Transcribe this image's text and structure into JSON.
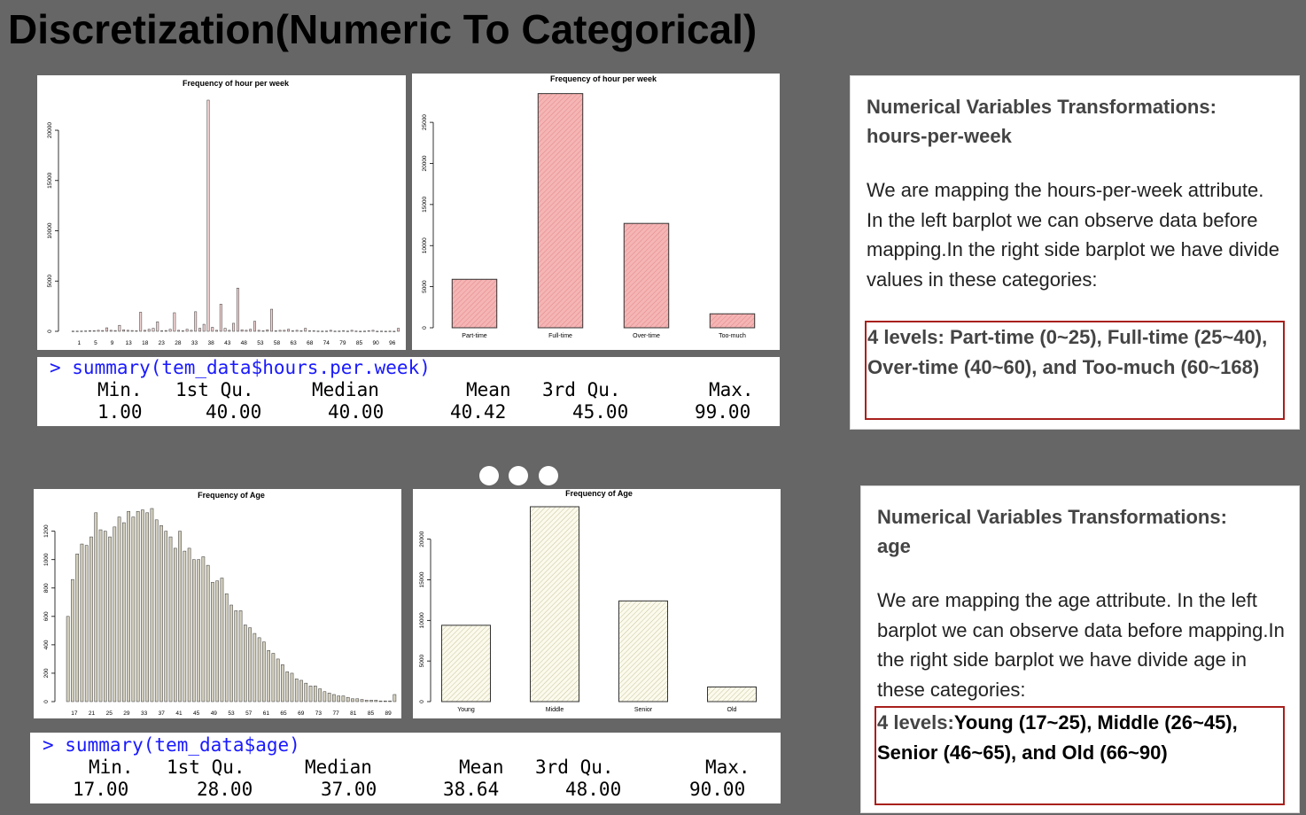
{
  "title": "Discretization(Numeric To Categorical)",
  "hours_section": {
    "summary": {
      "command": "> summary(tem_data$hours.per.week)",
      "headers": [
        "Min.",
        "1st Qu.",
        "Median",
        "Mean",
        "3rd Qu.",
        "Max."
      ],
      "values": [
        "1.00",
        "40.00",
        "40.00",
        "40.42",
        "45.00",
        "99.00"
      ]
    },
    "info": {
      "heading_line1": "Numerical Variables Transformations:",
      "heading_line2": "hours-per-week",
      "body": "We are mapping the hours-per-week attribute. In the left barplot we can observe data before mapping.In the right side barplot we have divide values in these categories:",
      "levels": "4 levels: Part-time (0~25), Full-time (25~40), Over-time (40~60), and Too-much (60~168)"
    }
  },
  "age_section": {
    "summary": {
      "command": "> summary(tem_data$age)",
      "headers": [
        "Min.",
        "1st Qu.",
        "Median",
        "Mean",
        "3rd Qu.",
        "Max."
      ],
      "values": [
        "17.00",
        "28.00",
        "37.00",
        "38.64",
        "48.00",
        "90.00"
      ]
    },
    "info": {
      "heading_line1": "Numerical Variables Transformations:",
      "heading_line2": "age",
      "body": "We are mapping the age attribute. In the left barplot we can observe data before mapping.In the right side barplot we have divide age in these categories:",
      "levels_prefix": "4 levels:",
      "levels_rest": "Young (17~25), Middle (26~45), Senior (46~65), and Old (66~90)"
    }
  },
  "chart_data": [
    {
      "id": "hours-raw",
      "type": "bar",
      "title": "Frequency of hour per week",
      "ylim": [
        0,
        23000
      ],
      "yticks": [
        0,
        5000,
        10000,
        15000,
        20000
      ],
      "x_tick_labels": [
        "1",
        "5",
        "9",
        "13",
        "18",
        "23",
        "28",
        "33",
        "38",
        "43",
        "48",
        "53",
        "58",
        "63",
        "68",
        "74",
        "79",
        "85",
        "90",
        "96"
      ],
      "values": [
        20,
        20,
        30,
        40,
        60,
        60,
        100,
        80,
        350,
        100,
        80,
        600,
        150,
        100,
        80,
        50,
        1900,
        100,
        200,
        300,
        950,
        50,
        80,
        200,
        1850,
        100,
        50,
        200,
        100,
        1950,
        300,
        700,
        23000,
        400,
        100,
        2700,
        300,
        100,
        800,
        4300,
        150,
        100,
        200,
        1000,
        100,
        50,
        150,
        2200,
        50,
        100,
        100,
        200,
        50,
        100,
        50,
        300,
        50,
        50,
        30,
        20,
        30,
        100,
        20,
        30,
        50,
        20,
        100,
        30,
        10,
        20,
        50,
        100,
        10,
        20,
        10,
        20,
        10,
        300
      ]
    },
    {
      "id": "hours-categories",
      "type": "bar",
      "title": "Frequency of hour per week",
      "categories": [
        "Part-time",
        "Full-time",
        "Over-time",
        "Too-much"
      ],
      "values": [
        5900,
        28500,
        12700,
        1700
      ],
      "ylim": [
        0,
        29000
      ],
      "yticks": [
        0,
        5000,
        10000,
        15000,
        20000,
        25000
      ],
      "color": "#f5b5b5"
    },
    {
      "id": "age-raw",
      "type": "bar",
      "title": "Frequency of Age",
      "ylim": [
        0,
        1360
      ],
      "yticks": [
        0,
        200,
        400,
        600,
        800,
        1000,
        1200
      ],
      "x_tick_labels": [
        "17",
        "21",
        "25",
        "29",
        "33",
        "37",
        "41",
        "45",
        "49",
        "53",
        "57",
        "61",
        "65",
        "69",
        "73",
        "77",
        "81",
        "85",
        "89"
      ],
      "values": [
        600,
        860,
        1040,
        1110,
        1100,
        1160,
        1330,
        1210,
        1200,
        1160,
        1230,
        1300,
        1260,
        1340,
        1300,
        1340,
        1350,
        1330,
        1360,
        1280,
        1240,
        1200,
        1160,
        1080,
        1200,
        1060,
        1080,
        1000,
        1000,
        1020,
        960,
        840,
        850,
        870,
        760,
        680,
        640,
        640,
        540,
        520,
        480,
        450,
        420,
        360,
        340,
        300,
        260,
        210,
        200,
        160,
        150,
        130,
        110,
        110,
        90,
        70,
        60,
        50,
        40,
        40,
        30,
        20,
        20,
        15,
        10,
        10,
        10,
        5,
        5,
        5,
        50
      ],
      "color": "#d4d0be"
    },
    {
      "id": "age-categories",
      "type": "bar",
      "title": "Frequency of Age",
      "categories": [
        "Young",
        "Middle",
        "Senior",
        "Old"
      ],
      "values": [
        9400,
        24000,
        12400,
        1800
      ],
      "ylim": [
        0,
        24000
      ],
      "yticks": [
        0,
        5000,
        10000,
        15000,
        20000
      ],
      "color": "#fbfaec"
    }
  ]
}
